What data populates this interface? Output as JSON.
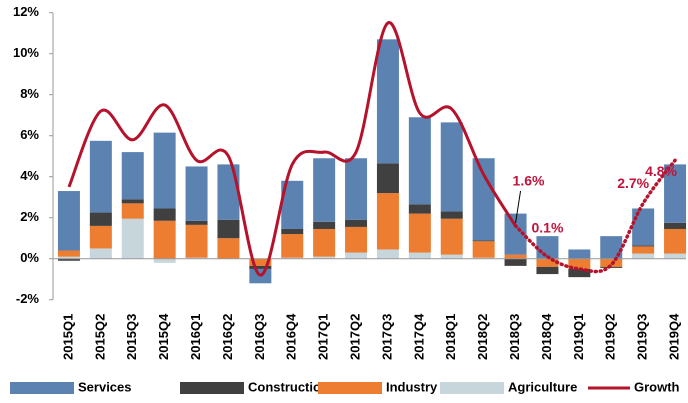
{
  "chart_data": {
    "type": "bar",
    "categories": [
      "2015Q1",
      "2015Q2",
      "2015Q3",
      "2015Q4",
      "2016Q1",
      "2016Q2",
      "2016Q3",
      "2016Q4",
      "2017Q1",
      "2017Q2",
      "2017Q3",
      "2017Q4",
      "2018Q1",
      "2018Q2",
      "2018Q3",
      "2018Q4",
      "2019Q1",
      "2019Q2",
      "2019Q3",
      "2019Q4"
    ],
    "series": [
      {
        "name": "Services",
        "color": "#5b82b1",
        "values": [
          2.9,
          3.5,
          2.3,
          3.7,
          2.65,
          2.7,
          -0.7,
          2.35,
          3.1,
          3.0,
          6.05,
          4.25,
          4.35,
          4.0,
          2.0,
          1.1,
          0.45,
          1.1,
          1.8,
          2.85
        ]
      },
      {
        "name": "Construction",
        "color": "#404040",
        "values": [
          -0.1,
          0.65,
          0.2,
          0.6,
          0.2,
          0.9,
          -0.15,
          0.25,
          0.35,
          0.35,
          1.45,
          0.45,
          0.35,
          0.05,
          -0.35,
          -0.35,
          -0.4,
          -0.05,
          0.05,
          0.3
        ]
      },
      {
        "name": "Industry",
        "color": "#ed7d31",
        "values": [
          0.3,
          1.1,
          0.75,
          1.85,
          1.6,
          1.0,
          -0.35,
          1.15,
          1.35,
          1.25,
          2.75,
          1.9,
          1.75,
          0.8,
          0.2,
          -0.4,
          -0.5,
          -0.4,
          0.35,
          1.2
        ]
      },
      {
        "name": "Agriculture",
        "color": "#c6d6da",
        "values": [
          0.1,
          0.5,
          1.95,
          -0.2,
          0.05,
          0,
          0,
          0.05,
          0.1,
          0.3,
          0.45,
          0.3,
          0.2,
          0.05,
          0,
          0,
          0,
          0,
          0.25,
          0.25
        ]
      },
      {
        "name": "Growth",
        "type": "line",
        "color": "#b5122c",
        "dotted_after": "2018Q3",
        "values": [
          3.5,
          7.2,
          5.8,
          7.5,
          4.8,
          5.0,
          -0.8,
          4.6,
          5.2,
          5.2,
          11.5,
          7.1,
          7.3,
          4.1,
          1.6,
          0.1,
          -0.5,
          -0.3,
          2.7,
          4.8
        ],
        "value_labels": [
          null,
          null,
          null,
          null,
          null,
          null,
          null,
          null,
          null,
          null,
          null,
          null,
          null,
          null,
          "1.6%",
          "0.1%",
          null,
          null,
          "2.7%",
          "4.8%"
        ]
      }
    ],
    "ylim": [
      -2,
      12
    ],
    "yticks": [
      {
        "value": -2,
        "label": "-2%"
      },
      {
        "value": 0,
        "label": "0%"
      },
      {
        "value": 2,
        "label": "2%"
      },
      {
        "value": 4,
        "label": "4%"
      },
      {
        "value": 6,
        "label": "6%"
      },
      {
        "value": 8,
        "label": "8%"
      },
      {
        "value": 10,
        "label": "10%"
      },
      {
        "value": 12,
        "label": "12%"
      }
    ],
    "legend": "bottom"
  }
}
